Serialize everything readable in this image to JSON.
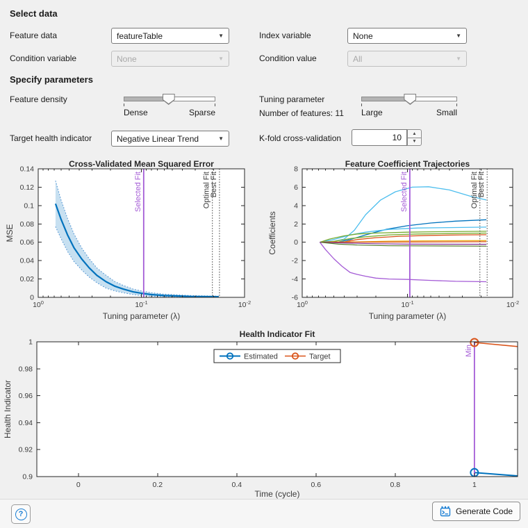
{
  "select_data": {
    "header": "Select data",
    "feature_data_label": "Feature data",
    "feature_data_value": "featureTable",
    "index_variable_label": "Index variable",
    "index_variable_value": "None",
    "condition_variable_label": "Condition variable",
    "condition_variable_value": "None",
    "condition_value_label": "Condition value",
    "condition_value_value": "All"
  },
  "specify_parameters": {
    "header": "Specify parameters",
    "feature_density_label": "Feature density",
    "feature_density_value": 0.49,
    "density_min_label": "Dense",
    "density_max_label": "Sparse",
    "tuning_parameter_label": "Tuning parameter",
    "tuning_parameter_value": 0.51,
    "tuning_min_label": "Large",
    "tuning_max_label": "Small",
    "num_features_label": "Number of features:",
    "num_features_value": "11",
    "target_hi_label": "Target health indicator",
    "target_hi_value": "Negative Linear Trend",
    "kfold_label": "K-fold cross-validation",
    "kfold_value": "10"
  },
  "footer": {
    "help_glyph": "?",
    "help_icon": "circled-question-mark-icon",
    "generate_code_label": "Generate Code",
    "generate_code_icon": "code-script-icon",
    "accent_blue": "#1B7FD4"
  },
  "icons": {
    "dropdown_arrow": "▼",
    "spinner_up": "▲",
    "spinner_down": "▼"
  },
  "chart_data": [
    {
      "type": "line",
      "title": "Cross-Validated Mean Squared Error",
      "xlabel": "Tuning parameter (λ)",
      "ylabel": "MSE",
      "x_scale": "log-reversed",
      "xlim": [
        1,
        0.01
      ],
      "x_ticks": [
        {
          "value": 1,
          "base": "10",
          "exp": "0"
        },
        {
          "value": 0.1,
          "base": "10",
          "exp": "-1"
        },
        {
          "value": 0.01,
          "base": "10",
          "exp": "-2"
        }
      ],
      "ylim": [
        0,
        0.14
      ],
      "y_ticks": [
        {
          "value": 0,
          "label": "0"
        },
        {
          "value": 0.02,
          "label": "0.02"
        },
        {
          "value": 0.04,
          "label": "0.04"
        },
        {
          "value": 0.06,
          "label": "0.06"
        },
        {
          "value": 0.08,
          "label": "0.08"
        },
        {
          "value": 0.1,
          "label": "0.1"
        },
        {
          "value": 0.12,
          "label": "0.12"
        },
        {
          "value": 0.14,
          "label": "0.14"
        }
      ],
      "series": [
        {
          "name": "cv-mse",
          "color": "#0072BD",
          "width": 2.2,
          "points": [
            [
              0.68,
              0.102
            ],
            [
              0.6,
              0.085
            ],
            [
              0.52,
              0.068
            ],
            [
              0.45,
              0.054
            ],
            [
              0.38,
              0.042
            ],
            [
              0.32,
              0.032
            ],
            [
              0.27,
              0.024
            ],
            [
              0.22,
              0.017
            ],
            [
              0.18,
              0.012
            ],
            [
              0.15,
              0.009
            ],
            [
              0.12,
              0.006
            ],
            [
              0.1,
              0.0045
            ],
            [
              0.08,
              0.003
            ],
            [
              0.06,
              0.002
            ],
            [
              0.045,
              0.0015
            ],
            [
              0.033,
              0.001
            ],
            [
              0.025,
              0.0008
            ],
            [
              0.0178,
              0.0007
            ]
          ],
          "band_upper": [
            [
              0.68,
              0.127
            ],
            [
              0.6,
              0.106
            ],
            [
              0.52,
              0.086
            ],
            [
              0.45,
              0.069
            ],
            [
              0.38,
              0.054
            ],
            [
              0.32,
              0.042
            ],
            [
              0.27,
              0.032
            ],
            [
              0.22,
              0.024
            ],
            [
              0.18,
              0.017
            ],
            [
              0.15,
              0.013
            ],
            [
              0.12,
              0.009
            ],
            [
              0.1,
              0.007
            ],
            [
              0.08,
              0.005
            ],
            [
              0.06,
              0.0035
            ],
            [
              0.045,
              0.0027
            ],
            [
              0.033,
              0.002
            ],
            [
              0.025,
              0.0016
            ],
            [
              0.0178,
              0.0014
            ]
          ],
          "band_lower": [
            [
              0.68,
              0.077
            ],
            [
              0.6,
              0.064
            ],
            [
              0.52,
              0.05
            ],
            [
              0.45,
              0.039
            ],
            [
              0.38,
              0.03
            ],
            [
              0.32,
              0.022
            ],
            [
              0.27,
              0.016
            ],
            [
              0.22,
              0.01
            ],
            [
              0.18,
              0.007
            ],
            [
              0.15,
              0.005
            ],
            [
              0.12,
              0.003
            ],
            [
              0.1,
              0.002
            ],
            [
              0.08,
              0.0013
            ],
            [
              0.06,
              0.0008
            ],
            [
              0.045,
              0.0005
            ],
            [
              0.033,
              0.0004
            ],
            [
              0.025,
              0.0003
            ],
            [
              0.0178,
              0.0003
            ]
          ],
          "band_fill": "rgba(0,114,189,0.22)",
          "band_edge": "#4C90D0"
        }
      ],
      "vlines": [
        {
          "label": "Selected Fit",
          "x": 0.095,
          "style": "solid",
          "color": "#A45BD6",
          "interactable": true
        },
        {
          "label": "Optimal Fit",
          "x": 0.0205,
          "style": "dotted",
          "color": "#3A3A3A",
          "interactable": false
        },
        {
          "label": "Best Fit",
          "x": 0.0175,
          "style": "dotted",
          "color": "#3A3A3A",
          "interactable": false
        }
      ]
    },
    {
      "type": "line",
      "title": "Feature Coefficient Trajectories",
      "xlabel": "Tuning parameter (λ)",
      "ylabel": "Coefficients",
      "x_scale": "log-reversed",
      "xlim": [
        1,
        0.01
      ],
      "x_ticks": [
        {
          "value": 1,
          "base": "10",
          "exp": "0"
        },
        {
          "value": 0.1,
          "base": "10",
          "exp": "-1"
        },
        {
          "value": 0.01,
          "base": "10",
          "exp": "-2"
        }
      ],
      "ylim": [
        -6,
        8
      ],
      "y_ticks": [
        {
          "value": -6,
          "label": "-6"
        },
        {
          "value": -4,
          "label": "-4"
        },
        {
          "value": -2,
          "label": "-2"
        },
        {
          "value": 0,
          "label": "0"
        },
        {
          "value": 2,
          "label": "2"
        },
        {
          "value": 4,
          "label": "4"
        },
        {
          "value": 6,
          "label": "6"
        },
        {
          "value": 8,
          "label": "8"
        }
      ],
      "series": [
        {
          "name": "coef-1",
          "color": "#4DBEEE",
          "width": 1.3,
          "points": [
            [
              0.68,
              0
            ],
            [
              0.5,
              0.1
            ],
            [
              0.4,
              0.35
            ],
            [
              0.32,
              1.3
            ],
            [
              0.25,
              3.0
            ],
            [
              0.18,
              4.6
            ],
            [
              0.13,
              5.5
            ],
            [
              0.09,
              6.0
            ],
            [
              0.063,
              6.05
            ],
            [
              0.04,
              5.7
            ],
            [
              0.025,
              5.0
            ],
            [
              0.0178,
              4.6
            ]
          ]
        },
        {
          "name": "coef-2",
          "color": "#0072BD",
          "width": 1.3,
          "points": [
            [
              0.68,
              0
            ],
            [
              0.45,
              0.05
            ],
            [
              0.35,
              0.3
            ],
            [
              0.25,
              0.8
            ],
            [
              0.16,
              1.4
            ],
            [
              0.1,
              1.8
            ],
            [
              0.06,
              2.1
            ],
            [
              0.035,
              2.3
            ],
            [
              0.0178,
              2.45
            ]
          ]
        },
        {
          "name": "coef-3",
          "color": "#4DBEEE",
          "width": 1.3,
          "points": [
            [
              0.68,
              0
            ],
            [
              0.5,
              0.3
            ],
            [
              0.35,
              0.8
            ],
            [
              0.25,
              1.1
            ],
            [
              0.15,
              1.4
            ],
            [
              0.08,
              1.55
            ],
            [
              0.04,
              1.6
            ],
            [
              0.0178,
              1.65
            ]
          ]
        },
        {
          "name": "coef-4",
          "color": "#77AC30",
          "width": 1.3,
          "points": [
            [
              0.68,
              0
            ],
            [
              0.55,
              0.35
            ],
            [
              0.4,
              0.7
            ],
            [
              0.3,
              0.9
            ],
            [
              0.2,
              1.0
            ],
            [
              0.1,
              1.1
            ],
            [
              0.05,
              1.15
            ],
            [
              0.0178,
              1.2
            ]
          ]
        },
        {
          "name": "coef-5",
          "color": "#77AC30",
          "width": 1.3,
          "points": [
            [
              0.68,
              0
            ],
            [
              0.5,
              0.1
            ],
            [
              0.35,
              0.4
            ],
            [
              0.25,
              0.6
            ],
            [
              0.15,
              0.8
            ],
            [
              0.08,
              0.9
            ],
            [
              0.04,
              0.95
            ],
            [
              0.0178,
              1.0
            ]
          ]
        },
        {
          "name": "coef-6",
          "color": "#D95319",
          "width": 1.3,
          "points": [
            [
              0.68,
              0
            ],
            [
              0.4,
              0.05
            ],
            [
              0.3,
              0.3
            ],
            [
              0.2,
              0.5
            ],
            [
              0.12,
              0.65
            ],
            [
              0.06,
              0.75
            ],
            [
              0.03,
              0.8
            ],
            [
              0.0178,
              0.82
            ]
          ]
        },
        {
          "name": "coef-7",
          "color": "#EDB120",
          "width": 1.3,
          "points": [
            [
              0.68,
              0
            ],
            [
              0.3,
              0.05
            ],
            [
              0.15,
              0.12
            ],
            [
              0.07,
              0.16
            ],
            [
              0.0178,
              0.18
            ]
          ]
        },
        {
          "name": "coef-8",
          "color": "#D95319",
          "width": 1.2,
          "points": [
            [
              0.68,
              0
            ],
            [
              0.2,
              0.02
            ],
            [
              0.0178,
              0.06
            ]
          ]
        },
        {
          "name": "coef-9",
          "color": "#7E2F8E",
          "width": 1.2,
          "points": [
            [
              0.68,
              0
            ],
            [
              0.35,
              -0.1
            ],
            [
              0.2,
              -0.16
            ],
            [
              0.1,
              -0.2
            ],
            [
              0.0178,
              -0.22
            ]
          ]
        },
        {
          "name": "coef-10",
          "color": "#4E7A28",
          "width": 1.2,
          "points": [
            [
              0.68,
              0
            ],
            [
              0.45,
              -0.2
            ],
            [
              0.3,
              -0.3
            ],
            [
              0.15,
              -0.38
            ],
            [
              0.0178,
              -0.42
            ]
          ]
        },
        {
          "name": "coef-11",
          "color": "#A45BD6",
          "width": 1.3,
          "points": [
            [
              0.68,
              0
            ],
            [
              0.6,
              -0.8
            ],
            [
              0.5,
              -1.8
            ],
            [
              0.42,
              -2.6
            ],
            [
              0.35,
              -3.3
            ],
            [
              0.3,
              -3.5
            ],
            [
              0.25,
              -3.7
            ],
            [
              0.2,
              -3.9
            ],
            [
              0.15,
              -4.0
            ],
            [
              0.1,
              -4.05
            ],
            [
              0.06,
              -4.15
            ],
            [
              0.035,
              -4.25
            ],
            [
              0.0178,
              -4.3
            ]
          ]
        }
      ],
      "vlines": [
        {
          "label": "Selected Fit",
          "x": 0.095,
          "style": "solid",
          "color": "#A45BD6",
          "interactable": true
        },
        {
          "label": "Optimal Fit",
          "x": 0.0205,
          "style": "dotted",
          "color": "#3A3A3A",
          "interactable": false
        },
        {
          "label": "Best Fit",
          "x": 0.0175,
          "style": "dotted",
          "color": "#3A3A3A",
          "interactable": false
        }
      ]
    },
    {
      "type": "line",
      "title": "Health Indicator Fit",
      "xlabel": "Time (cycle)",
      "ylabel": "Health Indicator",
      "x_scale": "linear",
      "xlim": [
        -0.105,
        1.109
      ],
      "x_ticks": [
        {
          "value": 0,
          "label": "0"
        },
        {
          "value": 0.2,
          "label": "0.2"
        },
        {
          "value": 0.4,
          "label": "0.4"
        },
        {
          "value": 0.6,
          "label": "0.6"
        },
        {
          "value": 0.8,
          "label": "0.8"
        },
        {
          "value": 1,
          "label": "1"
        }
      ],
      "ylim": [
        0.9,
        1
      ],
      "y_ticks": [
        {
          "value": 0.9,
          "label": "0.9"
        },
        {
          "value": 0.92,
          "label": "0.92"
        },
        {
          "value": 0.94,
          "label": "0.94"
        },
        {
          "value": 0.96,
          "label": "0.96"
        },
        {
          "value": 0.98,
          "label": "0.98"
        },
        {
          "value": 1,
          "label": "1"
        }
      ],
      "legend": [
        "Estimated",
        "Target"
      ],
      "series": [
        {
          "name": "Estimated",
          "color": "#0072BD",
          "width": 2,
          "points": [
            [
              1,
              0.903
            ],
            [
              1.109,
              0.9005
            ]
          ],
          "marker": [
            1,
            0.903
          ]
        },
        {
          "name": "Target",
          "color": "#D95319",
          "width": 1.6,
          "points": [
            [
              1,
              0.9995
            ],
            [
              1.109,
              0.9965
            ]
          ],
          "marker": [
            1,
            0.9995
          ]
        }
      ],
      "vlines": [
        {
          "label": "Min",
          "x": 1,
          "style": "solid",
          "color": "#A45BD6",
          "interactable": false
        }
      ]
    }
  ]
}
